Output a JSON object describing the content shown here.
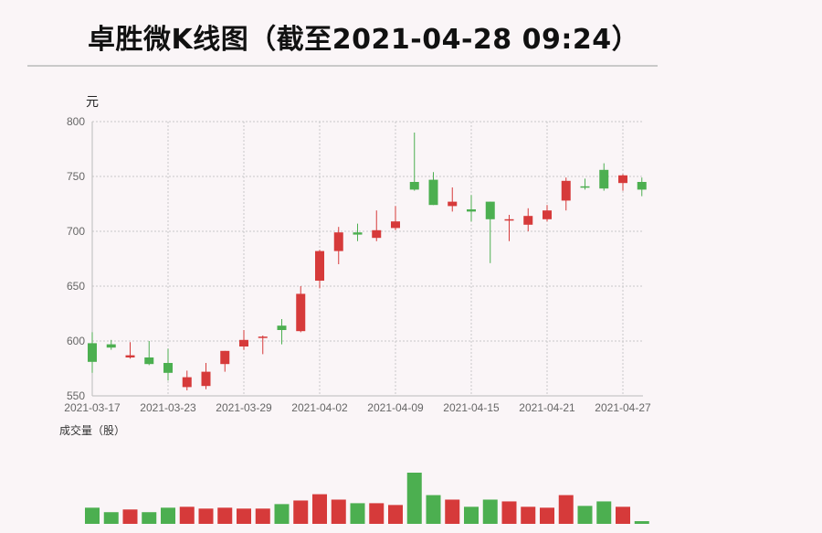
{
  "title": "卓胜微K线图（截至2021-04-28 09:24）",
  "chart_data": {
    "type": "candlestick",
    "y_unit_label": "元",
    "volume_label": "成交量（股）",
    "ylim": [
      550,
      800
    ],
    "y_ticks": [
      "800",
      "750",
      "700",
      "650",
      "600",
      "550"
    ],
    "x_tick_labels": [
      "2021-03-17",
      "2021-03-23",
      "2021-03-29",
      "2021-04-02",
      "2021-04-09",
      "2021-04-15",
      "2021-04-21",
      "2021-04-27"
    ],
    "grid": true,
    "colors": {
      "up": "#d63a3a",
      "down": "#4caf50",
      "grid": "#c8c8c8"
    },
    "candles": [
      {
        "open": 598,
        "high": 608,
        "low": 571,
        "close": 581
      },
      {
        "open": 597,
        "high": 601,
        "low": 592,
        "close": 594
      },
      {
        "open": 585,
        "high": 599,
        "low": 584,
        "close": 587
      },
      {
        "open": 585,
        "high": 600,
        "low": 578,
        "close": 579
      },
      {
        "open": 580,
        "high": 593,
        "low": 564,
        "close": 571
      },
      {
        "open": 558,
        "high": 573,
        "low": 555,
        "close": 567
      },
      {
        "open": 559,
        "high": 580,
        "low": 556,
        "close": 572
      },
      {
        "open": 579,
        "high": 591,
        "low": 572,
        "close": 591
      },
      {
        "open": 595,
        "high": 610,
        "low": 592,
        "close": 601
      },
      {
        "open": 604,
        "high": 605,
        "low": 588,
        "close": 604
      },
      {
        "open": 614,
        "high": 620,
        "low": 597,
        "close": 610
      },
      {
        "open": 609,
        "high": 650,
        "low": 608,
        "close": 643
      },
      {
        "open": 655,
        "high": 683,
        "low": 648,
        "close": 682
      },
      {
        "open": 682,
        "high": 704,
        "low": 670,
        "close": 699
      },
      {
        "open": 699,
        "high": 707,
        "low": 691,
        "close": 697
      },
      {
        "open": 694,
        "high": 719,
        "low": 691,
        "close": 701
      },
      {
        "open": 703,
        "high": 723,
        "low": 701,
        "close": 709
      },
      {
        "open": 745,
        "high": 790,
        "low": 737,
        "close": 738
      },
      {
        "open": 747,
        "high": 754,
        "low": 724,
        "close": 724
      },
      {
        "open": 723,
        "high": 740,
        "low": 718,
        "close": 727
      },
      {
        "open": 720,
        "high": 733,
        "low": 709,
        "close": 718
      },
      {
        "open": 727,
        "high": 727,
        "low": 671,
        "close": 711
      },
      {
        "open": 710,
        "high": 715,
        "low": 691,
        "close": 711
      },
      {
        "open": 706,
        "high": 721,
        "low": 700,
        "close": 714
      },
      {
        "open": 711,
        "high": 724,
        "low": 709,
        "close": 719
      },
      {
        "open": 728,
        "high": 749,
        "low": 719,
        "close": 746
      },
      {
        "open": 741,
        "high": 748,
        "low": 738,
        "close": 740
      },
      {
        "open": 756,
        "high": 762,
        "low": 737,
        "close": 739
      },
      {
        "open": 744,
        "high": 752,
        "low": 737,
        "close": 751
      },
      {
        "open": 745,
        "high": 749,
        "low": 732,
        "close": 738
      }
    ],
    "volume": [
      18,
      13,
      16,
      13,
      18,
      19,
      17,
      18,
      17,
      17,
      22,
      26,
      33,
      27,
      23,
      23,
      21,
      57,
      32,
      27,
      19,
      27,
      25,
      19,
      18,
      32,
      20,
      25,
      19,
      3
    ]
  }
}
